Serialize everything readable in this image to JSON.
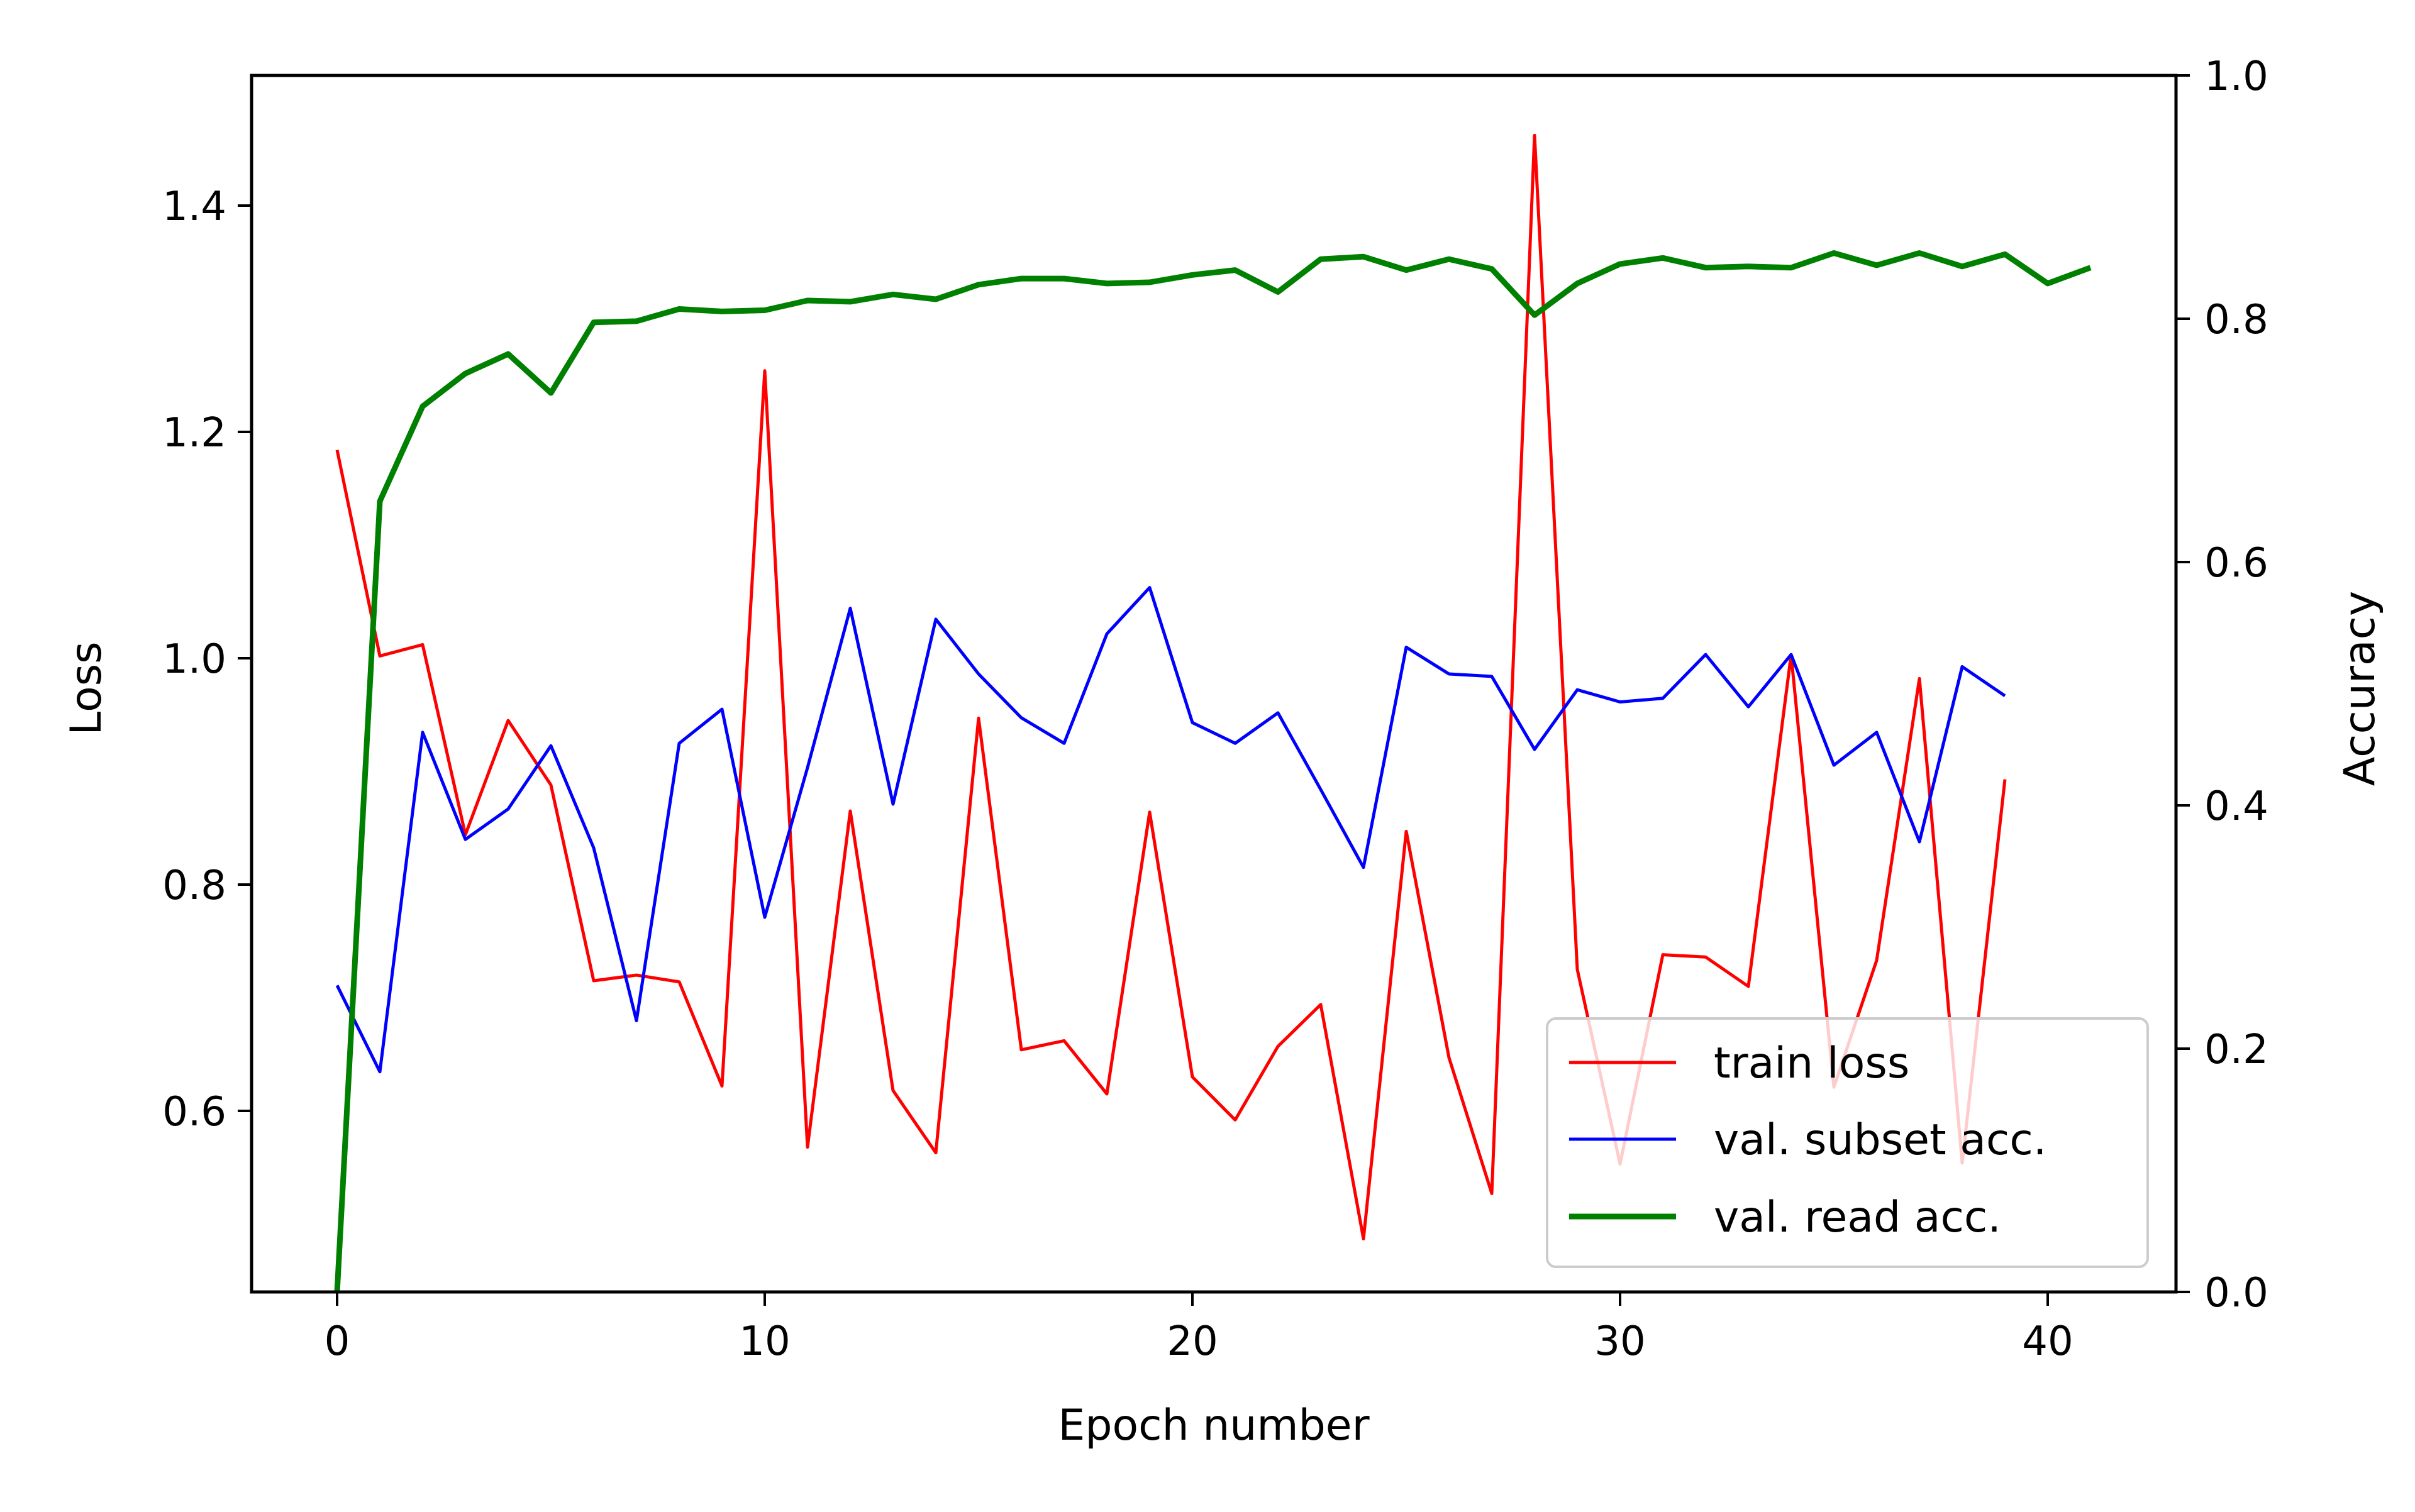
{
  "chart_data": {
    "type": "line",
    "title": "",
    "xlabel": "Epoch number",
    "ylabel_left": "Loss",
    "ylabel_right": "Accuracy",
    "xlim": [
      -2,
      43
    ],
    "ylim_left": [
      0.44,
      1.515
    ],
    "ylim_right": [
      0.0,
      1.0
    ],
    "x_ticks": [
      0,
      10,
      20,
      30,
      40
    ],
    "y_left_ticks": [
      0.6,
      0.8,
      1.0,
      1.2,
      1.4
    ],
    "y_right_ticks": [
      0.0,
      0.2,
      0.4,
      0.6,
      0.8,
      1.0
    ],
    "grid": false,
    "legend_position": "lower-right",
    "series": [
      {
        "name": "train loss",
        "axis": "left",
        "color": "#ff0000",
        "x": [
          0,
          1,
          2,
          3,
          4,
          5,
          6,
          7,
          8,
          9,
          10,
          11,
          12,
          13,
          14,
          15,
          16,
          17,
          18,
          19,
          20,
          21,
          22,
          23,
          24,
          25,
          26,
          27,
          28,
          29,
          30,
          31,
          32,
          33,
          34,
          35,
          36,
          37,
          38,
          39
        ],
        "values": [
          1.184,
          1.002,
          1.012,
          0.844,
          0.945,
          0.888,
          0.715,
          0.72,
          0.714,
          0.622,
          1.254,
          0.568,
          0.865,
          0.618,
          0.563,
          0.947,
          0.654,
          0.662,
          0.615,
          0.864,
          0.63,
          0.592,
          0.657,
          0.694,
          0.487,
          0.847,
          0.647,
          0.527,
          1.462,
          0.725,
          0.553,
          0.738,
          0.736,
          0.71,
          1.003,
          0.621,
          0.733,
          0.982,
          0.554,
          0.893
        ]
      },
      {
        "name": "val. subset acc.",
        "axis": "right",
        "color": "#0000ff",
        "x": [
          0,
          1,
          2,
          3,
          4,
          5,
          6,
          7,
          8,
          9,
          10,
          11,
          12,
          13,
          14,
          15,
          16,
          17,
          18,
          19,
          20,
          21,
          22,
          23,
          24,
          25,
          26,
          27,
          28,
          29,
          30,
          31,
          32,
          33,
          34,
          35,
          36,
          37,
          38,
          39
        ],
        "values": [
          0.252,
          0.181,
          0.46,
          0.372,
          0.397,
          0.449,
          0.365,
          0.223,
          0.451,
          0.479,
          0.308,
          0.431,
          0.562,
          0.401,
          0.553,
          0.508,
          0.472,
          0.451,
          0.541,
          0.579,
          0.468,
          0.451,
          0.476,
          0.413,
          0.349,
          0.53,
          0.508,
          0.506,
          0.446,
          0.495,
          0.485,
          0.488,
          0.524,
          0.481,
          0.524,
          0.433,
          0.46,
          0.37,
          0.514,
          0.49
        ]
      },
      {
        "name": "val. read acc.",
        "axis": "right",
        "color": "#008000",
        "x": [
          0,
          1,
          2,
          3,
          4,
          5,
          6,
          7,
          8,
          9,
          10,
          11,
          12,
          13,
          14,
          15,
          16,
          17,
          18,
          19,
          20,
          21,
          22,
          23,
          24,
          25,
          26,
          27,
          28,
          29,
          30,
          31,
          32,
          33,
          34,
          35,
          36,
          37,
          38,
          39,
          40,
          41
        ],
        "values": [
          0.0,
          0.65,
          0.728,
          0.755,
          0.771,
          0.739,
          0.797,
          0.798,
          0.808,
          0.806,
          0.807,
          0.815,
          0.814,
          0.82,
          0.816,
          0.828,
          0.833,
          0.833,
          0.829,
          0.83,
          0.836,
          0.84,
          0.822,
          0.849,
          0.851,
          0.84,
          0.849,
          0.841,
          0.803,
          0.829,
          0.845,
          0.85,
          0.842,
          0.843,
          0.842,
          0.854,
          0.844,
          0.854,
          0.843,
          0.853,
          0.829,
          0.842
        ]
      }
    ]
  }
}
